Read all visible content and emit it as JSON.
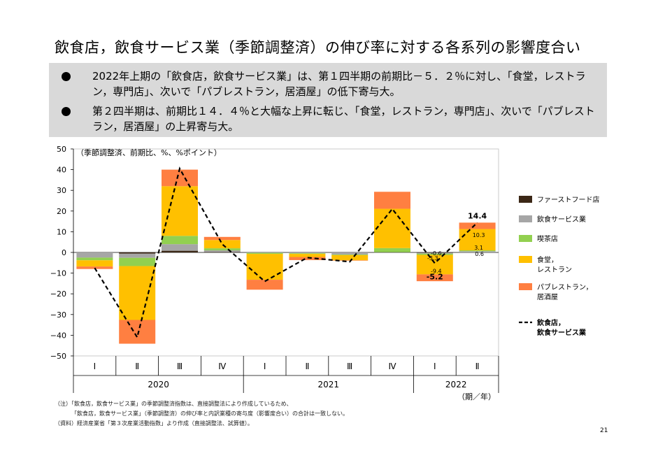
{
  "title": "飲食店，飲食サービス業（季節調整済）の伸び率に対する各系列の影響度合い",
  "summary": [
    "2022年上期の「飲食店，飲食サービス業」は、第１四半期の前期比－５．２％に対し、「食堂，レストラン，専門店」、次いで「パブレストラン，居酒屋」の低下寄与大。",
    "第２四半期は、前期比１４．４％と大幅な上昇に転じ、「食堂，レストラン，専門店」、次いで「パブレストラン，居酒屋」の上昇寄与大。"
  ],
  "chart_data": {
    "type": "bar",
    "stacked": true,
    "unit_label": "（季節調整済、前期比、%、%ポイント）",
    "x_unit_label": "（期／年）",
    "ylim": [
      -50,
      50
    ],
    "yticks": [
      50,
      40,
      30,
      20,
      10,
      0,
      -10,
      -20,
      -30,
      -40,
      -50
    ],
    "categories": [
      "Ⅰ",
      "Ⅱ",
      "Ⅲ",
      "Ⅳ",
      "Ⅰ",
      "Ⅱ",
      "Ⅲ",
      "Ⅳ",
      "Ⅰ",
      "Ⅱ"
    ],
    "years": [
      {
        "label": "2020",
        "span": [
          0,
          3
        ]
      },
      {
        "label": "2021",
        "span": [
          4,
          7
        ]
      },
      {
        "label": "2022",
        "span": [
          8,
          9
        ]
      }
    ],
    "colors": {
      "fastfood": "#3b2716",
      "service": "#a6a6a6",
      "cafe": "#92d050",
      "restaurant": "#ffc000",
      "pub": "#ff7f41",
      "line": "#000000"
    },
    "series": [
      {
        "key": "fastfood",
        "name": "ファーストフード店",
        "values": [
          0.0,
          -0.6,
          0.8,
          0.2,
          0.0,
          0.0,
          0.0,
          0.1,
          -0.2,
          0.0
        ]
      },
      {
        "key": "service",
        "name": "飲食サービス業",
        "values": [
          -2.5,
          -2.0,
          3.2,
          0.8,
          -0.2,
          -0.4,
          -1.0,
          -0.3,
          -0.4,
          0.6
        ]
      },
      {
        "key": "cafe",
        "name": "喫茶店",
        "values": [
          -1.3,
          -4.0,
          4.0,
          1.0,
          -0.5,
          -0.3,
          -0.3,
          2.0,
          -0.6,
          0.4
        ]
      },
      {
        "key": "restaurant",
        "name": "食堂，レストラン，専門店",
        "values": [
          -3.0,
          -26.0,
          24.0,
          4.0,
          -12.5,
          -1.5,
          -2.5,
          19.0,
          -9.4,
          10.3
        ]
      },
      {
        "key": "pub",
        "name": "パブレストラン，居酒屋",
        "values": [
          -1.2,
          -11.5,
          8.0,
          1.5,
          -4.8,
          -1.5,
          -0.2,
          8.2,
          -3.3,
          3.1
        ]
      }
    ],
    "line": {
      "name": "飲食店，飲食サービス業",
      "values": [
        -7.5,
        -41.0,
        40.5,
        4.0,
        -14.0,
        -2.5,
        -4.5,
        21.0,
        -5.2,
        14.4
      ]
    },
    "annotations": {
      "q1_2022_total": "-5.2",
      "q2_2022_total": "14.4",
      "q1_2022_cafe": "-0.6",
      "q1_2022_pub": "-3.3",
      "q1_2022_restaurant": "-9.4",
      "q2_2022_restaurant": "10.3",
      "q2_2022_pub": "3.1",
      "q2_2022_service": "0.6"
    },
    "legend_position": "right"
  },
  "notes": [
    "（注）「飲食店，飲食サービス業」の季節調整済指数は、直接調整法により作成しているため、",
    "「飲食店，飲食サービス業」（季節調整済）の伸び率と内訳業種の寄与度（影響度合い）の合計は一致しない。",
    "（資料）経済産業省「第３次産業活動指数」より作成（直接調整法、試算値）。"
  ],
  "page_number": "21"
}
